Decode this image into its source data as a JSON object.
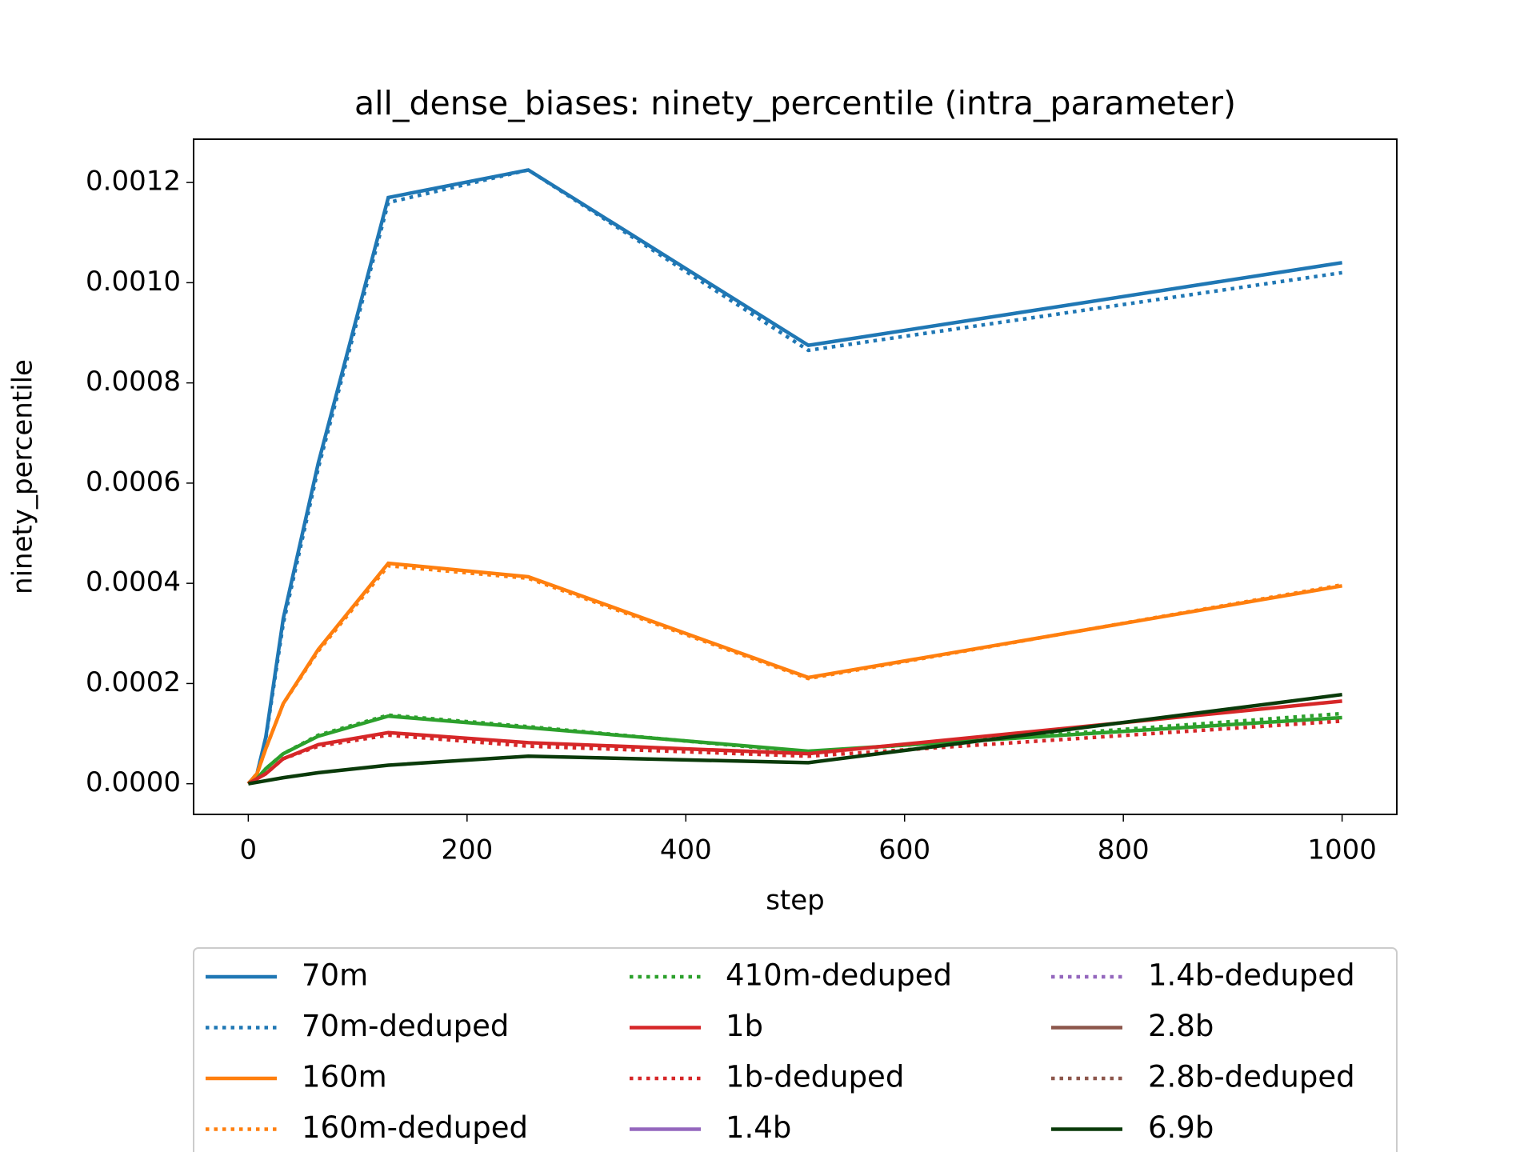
{
  "chart_data": {
    "type": "line",
    "title": "all_dense_biases: ninety_percentile (intra_parameter)",
    "xlabel": "step",
    "ylabel": "ninety_percentile",
    "x": [
      0,
      8,
      16,
      32,
      64,
      128,
      256,
      512,
      1000
    ],
    "xlim": [
      -50,
      1050
    ],
    "xticks": [
      0,
      200,
      400,
      600,
      800,
      1000
    ],
    "ylim": [
      -6.12e-05,
      0.0012864
    ],
    "yticks": [
      {
        "value": 0,
        "label": "0.0000"
      },
      {
        "value": 0.0002,
        "label": "0.0002"
      },
      {
        "value": 0.0004,
        "label": "0.0004"
      },
      {
        "value": 0.0006,
        "label": "0.0006"
      },
      {
        "value": 0.0008,
        "label": "0.0008"
      },
      {
        "value": 0.001,
        "label": "0.0010"
      },
      {
        "value": 0.0012,
        "label": "0.0012"
      }
    ],
    "series": [
      {
        "name": "70m",
        "color": "#1f77b4",
        "style": "solid",
        "values": [
          0,
          2e-05,
          9.3e-05,
          0.00033,
          0.00064,
          0.00117,
          0.001225,
          0.000875,
          0.00104
        ]
      },
      {
        "name": "70m-deduped",
        "color": "#1f77b4",
        "style": "dotted",
        "values": [
          0,
          2e-05,
          9e-05,
          0.00032,
          0.00063,
          0.00116,
          0.001225,
          0.000865,
          0.00102
        ]
      },
      {
        "name": "160m",
        "color": "#ff7f0e",
        "style": "solid",
        "values": [
          0,
          2e-05,
          7e-05,
          0.00016,
          0.000268,
          0.00044,
          0.000413,
          0.000212,
          0.000395
        ]
      },
      {
        "name": "160m-deduped",
        "color": "#ff7f0e",
        "style": "dotted",
        "values": [
          0,
          2e-05,
          7e-05,
          0.00016,
          0.000265,
          0.000435,
          0.00041,
          0.00021,
          0.000397
        ]
      },
      {
        "color": "#2ca02c",
        "style": "solid",
        "values": [
          0,
          1e-05,
          3e-05,
          6e-05,
          9.5e-05,
          0.000135,
          0.000112,
          6.5e-05,
          0.000132
        ]
      },
      {
        "name": "410m-deduped",
        "color": "#2ca02c",
        "style": "dotted",
        "values": [
          0,
          1e-05,
          3e-05,
          6e-05,
          9.7e-05,
          0.000137,
          0.000114,
          6.3e-05,
          0.00014
        ]
      },
      {
        "name": "1b",
        "color": "#d62728",
        "style": "solid",
        "values": [
          0,
          1e-05,
          2e-05,
          5e-05,
          7.8e-05,
          0.000102,
          8.2e-05,
          6e-05,
          0.000165
        ]
      },
      {
        "name": "1b-deduped",
        "color": "#d62728",
        "style": "dotted",
        "values": [
          0,
          1e-05,
          2e-05,
          5e-05,
          7.5e-05,
          9.7e-05,
          7.5e-05,
          5.5e-05,
          0.000125
        ]
      },
      {
        "name": "1.4b",
        "color": "#9467bd",
        "style": "solid",
        "values": [
          null,
          null,
          null,
          null,
          null,
          null,
          null,
          null,
          null
        ]
      },
      {
        "name": "1.4b-deduped",
        "color": "#9467bd",
        "style": "dotted",
        "values": [
          null,
          null,
          null,
          null,
          null,
          null,
          null,
          null,
          null
        ]
      },
      {
        "name": "2.8b",
        "color": "#8c564b",
        "style": "solid",
        "values": [
          null,
          null,
          null,
          null,
          null,
          null,
          null,
          null,
          null
        ]
      },
      {
        "name": "2.8b-deduped",
        "color": "#8c564b",
        "style": "dotted",
        "values": [
          null,
          null,
          null,
          null,
          null,
          null,
          null,
          null,
          null
        ]
      },
      {
        "name": "6.9b",
        "color": "#0a3a0a",
        "style": "solid",
        "values": [
          0,
          3e-06,
          6e-06,
          1.2e-05,
          2.2e-05,
          3.7e-05,
          5.5e-05,
          4.2e-05,
          0.000178
        ]
      }
    ]
  }
}
